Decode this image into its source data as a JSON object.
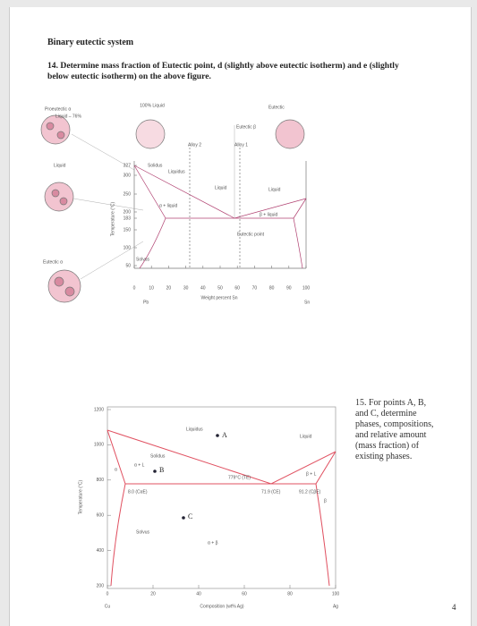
{
  "header": {
    "title": "Binary eutectic system"
  },
  "question_14": [
    "14. Determine mass fraction of Eutectic point, d (slightly above eutectic isotherm) and e (slightly",
    "below eutectic isotherm) on the above figure."
  ],
  "figure_1": {
    "y_axis_title": "Temperature (°C)",
    "x_axis_title": "Weight percent Sn",
    "y_ticks": [
      "327",
      "300",
      "250",
      "200",
      "183",
      "150",
      "100",
      "50"
    ],
    "x_ticks": [
      "0",
      "10",
      "20",
      "30",
      "40",
      "50",
      "60",
      "70",
      "80",
      "90",
      "100"
    ],
    "labels": {
      "full_liquid": "100% Liquid",
      "eutectic": "Eutectic",
      "eutectic_beta": "Eutectic β",
      "alloy_2": "Alloy 2",
      "alloy_1": "Alloy 1",
      "liquid_left": "Liquid",
      "liquid_center": "Liquid",
      "liquid_right": "Liquid",
      "solidus": "Solidus",
      "liquidus": "Liquidus",
      "alpha_liquid": "α + liquid",
      "beta_liquid": "β + liquid",
      "eutectic_point": "Eutectic point",
      "proeutectic": "Proeutectic α",
      "liquid_pct": "Liquid – 76%",
      "eutectic_alpha": "Eutectic α",
      "solvus": "Solvus",
      "pb": "Pb",
      "sn": "Sn"
    }
  },
  "figure_2": {
    "y_axis_title": "Temperature (°C)",
    "x_axis_title": "Composition (wt% Ag)",
    "y_ticks": [
      "1200",
      "1000",
      "800",
      "600",
      "400",
      "200"
    ],
    "x_ticks": [
      "0",
      "20",
      "40",
      "60",
      "80",
      "100"
    ],
    "labels": {
      "A": "A",
      "B": "B",
      "C": "C",
      "liquidus": "Liquidus",
      "liquid": "Liquid",
      "solidus": "Solidus",
      "solvus": "Solvus",
      "eutectic_temp": "779°C (TE)",
      "c_alpha": "8.0 (CαE)",
      "c_e": "71.9 (CE)",
      "c_beta": "91.2 (CβE)",
      "alpha": "α",
      "beta": "β",
      "alpha_beta": "α + β",
      "beta_l": "β + L",
      "alpha_l": "α + L",
      "cu": "Cu",
      "ag": "Ag"
    }
  },
  "question_15": [
    "15. For points A, B,",
    "and C, determine",
    "phases, compositions,",
    "and relative amount",
    "(mass fraction) of",
    "existing phases."
  ],
  "page_number": "4"
}
